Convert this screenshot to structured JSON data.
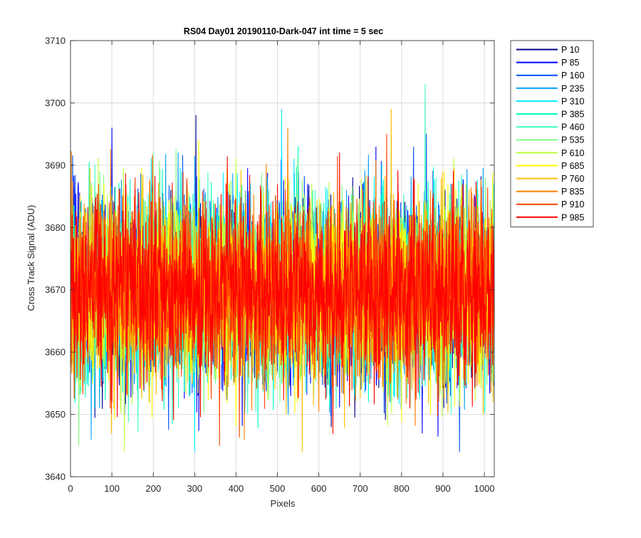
{
  "chart_data": {
    "type": "line",
    "title": "RS04 Day01 20190110-Dark-047 int time = 5 sec",
    "xlabel": "Pixels",
    "ylabel": "Cross Track Signal (ADU)",
    "xlim": [
      0,
      1024
    ],
    "ylim": [
      3640,
      3710
    ],
    "x_ticks": [
      0,
      100,
      200,
      300,
      400,
      500,
      600,
      700,
      800,
      900,
      1000
    ],
    "y_ticks": [
      3640,
      3650,
      3660,
      3670,
      3680,
      3690,
      3700,
      3710
    ],
    "grid": true,
    "legend_position": "outside-top-right",
    "series": [
      {
        "name": "P 10",
        "color": "#00008f",
        "mean": 3670,
        "peak": {
          "x": 303,
          "y": 3698
        },
        "trough": {
          "x": 630,
          "y": 3648
        }
      },
      {
        "name": "P 85",
        "color": "#0000ff",
        "mean": 3670,
        "peak": {
          "x": 100,
          "y": 3696
        },
        "trough": {
          "x": 850,
          "y": 3647
        }
      },
      {
        "name": "P 160",
        "color": "#0050ff",
        "mean": 3670,
        "peak": {
          "x": 860,
          "y": 3695
        },
        "trough": {
          "x": 940,
          "y": 3644
        }
      },
      {
        "name": "P 235",
        "color": "#009fff",
        "mean": 3670,
        "peak": {
          "x": 260,
          "y": 3692
        },
        "trough": {
          "x": 50,
          "y": 3646
        }
      },
      {
        "name": "P 310",
        "color": "#00efff",
        "mean": 3670,
        "peak": {
          "x": 510,
          "y": 3699
        },
        "trough": {
          "x": 300,
          "y": 3644
        }
      },
      {
        "name": "P 385",
        "color": "#00ffbf",
        "mean": 3670,
        "peak": {
          "x": 550,
          "y": 3693
        },
        "trough": {
          "x": 720,
          "y": 3652
        }
      },
      {
        "name": "P 460",
        "color": "#40ffbf",
        "mean": 3670,
        "peak": {
          "x": 857,
          "y": 3703
        },
        "trough": {
          "x": 920,
          "y": 3650
        }
      },
      {
        "name": "P 535",
        "color": "#80ff80",
        "mean": 3670,
        "peak": {
          "x": 200,
          "y": 3692
        },
        "trough": {
          "x": 20,
          "y": 3645
        }
      },
      {
        "name": "P 610",
        "color": "#bfff40",
        "mean": 3670,
        "peak": {
          "x": 400,
          "y": 3691
        },
        "trough": {
          "x": 130,
          "y": 3644
        }
      },
      {
        "name": "P 685",
        "color": "#ffff00",
        "mean": 3670,
        "peak": {
          "x": 310,
          "y": 3694
        },
        "trough": {
          "x": 800,
          "y": 3649
        }
      },
      {
        "name": "P 760",
        "color": "#ffbf00",
        "mean": 3670,
        "peak": {
          "x": 775,
          "y": 3699
        },
        "trough": {
          "x": 560,
          "y": 3644
        }
      },
      {
        "name": "P 835",
        "color": "#ff8000",
        "mean": 3670,
        "peak": {
          "x": 525,
          "y": 3696
        },
        "trough": {
          "x": 420,
          "y": 3646
        }
      },
      {
        "name": "P 910",
        "color": "#ff4000",
        "mean": 3670,
        "peak": {
          "x": 764,
          "y": 3695
        },
        "trough": {
          "x": 360,
          "y": 3645
        }
      },
      {
        "name": "P 985",
        "color": "#ff0000",
        "mean": 3670,
        "peak": {
          "x": 650,
          "y": 3692
        },
        "trough": {
          "x": 820,
          "y": 3651
        }
      }
    ]
  }
}
